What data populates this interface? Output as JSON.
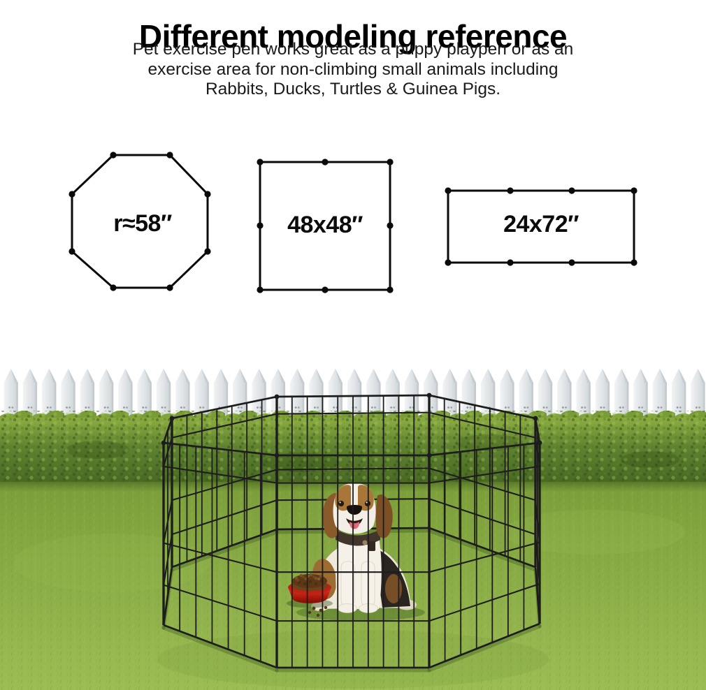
{
  "header": {
    "title": "Different modeling reference",
    "subtitle_lines": [
      "Pet exercise pen works great as a puppy playpen or as an",
      "exercise area for non-climbing small animals including",
      "Rabbits, Ducks, Turtles & Guinea Pigs."
    ]
  },
  "diagrams": [
    {
      "shape": "octagon",
      "panels": 8,
      "label": "r≈58″"
    },
    {
      "shape": "square",
      "panels": 8,
      "label": "48x48″"
    },
    {
      "shape": "rectangle",
      "panels": 8,
      "label": "24x72″"
    }
  ],
  "photo": {
    "objects": [
      "white picket fence",
      "green hedge",
      "grass lawn",
      "black wire octagon exercise pen",
      "beagle dog",
      "red food bowl with kibble"
    ],
    "colors": {
      "pen_wire": "#1d1d1d",
      "fence_picket": "#dde1e4",
      "hedge_green": "#5e8230",
      "grass_green": "#8aad45",
      "bowl_red": "#cezz"
    }
  }
}
